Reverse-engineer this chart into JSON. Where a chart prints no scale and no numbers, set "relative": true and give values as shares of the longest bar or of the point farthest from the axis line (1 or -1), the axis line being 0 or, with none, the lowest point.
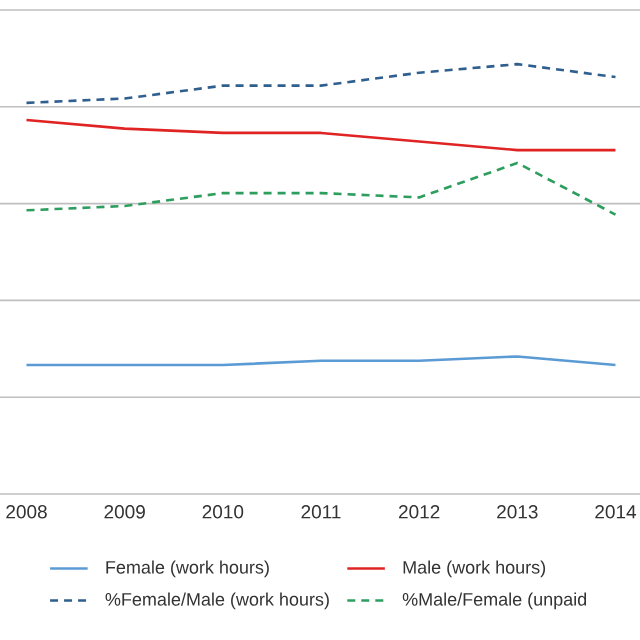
{
  "chart_data": {
    "type": "line",
    "relative": true,
    "grid": "y",
    "legend": "bottom",
    "marker": "none",
    "categories": [
      "2008",
      "2009",
      "2010",
      "2011",
      "2012",
      "2013",
      "2014"
    ],
    "series": [
      {
        "name": "Female (work hours)",
        "color": "#5b9bd5",
        "line_style": "solid",
        "values": [
          0.3,
          0.3,
          0.3,
          0.31,
          0.31,
          0.32,
          0.3
        ]
      },
      {
        "name": "Male (work hours)",
        "color": "#e02424",
        "line_style": "solid",
        "values": [
          0.87,
          0.85,
          0.84,
          0.84,
          0.82,
          0.8,
          0.8
        ]
      },
      {
        "name": "%Female/Male (work hours)",
        "color": "#2f5f8f",
        "line_style": "dashed",
        "values": [
          0.91,
          0.92,
          0.95,
          0.95,
          0.98,
          1.0,
          0.97
        ]
      },
      {
        "name": "%Male/Female (unpaid",
        "color": "#2e9e5e",
        "line_style": "dashed",
        "values": [
          0.66,
          0.67,
          0.7,
          0.7,
          0.69,
          0.77,
          0.65
        ]
      }
    ]
  }
}
